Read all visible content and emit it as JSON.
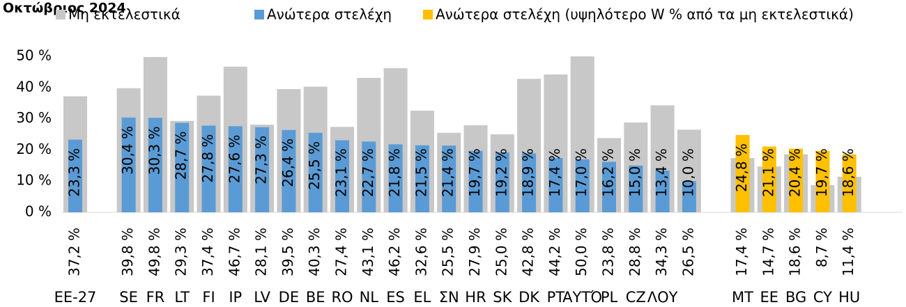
{
  "chart_data": {
    "type": "bar",
    "title": "Οκτώβριος 2024",
    "categories": [
      "EE-27",
      "SE",
      "FR",
      "LT",
      "FI",
      "IP",
      "LV",
      "DE",
      "BE",
      "RO",
      "NL",
      "ES",
      "EL",
      "ΣΝ",
      "HR",
      "SK",
      "DK",
      "PT",
      "ΑΥΤΌ",
      "PL",
      "CZ",
      "ΛΟΥ",
      null,
      "MT",
      "EE",
      "BG",
      "CY",
      "HU"
    ],
    "series": [
      {
        "name": "Μη εκτελεστικά",
        "color": "#c8c8c8",
        "values": [
          37.2,
          39.8,
          49.8,
          29.3,
          37.4,
          46.7,
          28.1,
          39.5,
          40.3,
          27.4,
          43.1,
          46.2,
          32.6,
          25.5,
          27.9,
          25.0,
          42.8,
          44.2,
          50.0,
          23.8,
          28.8,
          34.3,
          26.5,
          17.4,
          14.7,
          18.6,
          8.7,
          11.4
        ],
        "value_labels": [
          "37,2 %",
          "39,8 %",
          "49,8 %",
          "29,3 %",
          "37,4 %",
          "46,7 %",
          "28,1 %",
          "39,5 %",
          "40,3 %",
          "27,4 %",
          "43,1 %",
          "46,2 %",
          "32,6 %",
          "25,5 %",
          "27,9 %",
          "25,0 %",
          "42,8 %",
          "44,2 %",
          "50,0 %",
          "23,8 %",
          "28,8 %",
          "34,3 %",
          "26,5 %",
          "17,4 %",
          "14,7 %",
          "18,6 %",
          "8,7 %",
          "11,4 %"
        ]
      },
      {
        "name": "Ανώτερα στελέχη",
        "color": "#5b9bd5",
        "values": [
          23.3,
          30.4,
          30.3,
          28.7,
          27.8,
          27.6,
          27.3,
          26.4,
          25.5,
          23.1,
          22.7,
          21.8,
          21.5,
          21.4,
          19.7,
          19.2,
          18.9,
          17.4,
          17.0,
          16.2,
          15.0,
          13.4,
          10.0,
          null,
          null,
          null,
          null,
          null
        ],
        "value_labels": [
          "23,3 %",
          "30,4 %",
          "30,3 %",
          "28,7 %",
          "27,8 %",
          "27,6 %",
          "27,3 %",
          "26,4 %",
          "25,5 %",
          "23,1 %",
          "22,7 %",
          "21,8 %",
          "21,5 %",
          "21,4 %",
          "19,7 %",
          "19,2 %",
          "18,9 %",
          "17,4 %",
          "17,0 %",
          "16,2 %",
          "15,0 %",
          "13,4 %",
          "10,0 %",
          null,
          null,
          null,
          null,
          null
        ]
      },
      {
        "name": "Ανώτερα στελέχη (υψηλότερο W % από τα μη εκτελεστικά)",
        "color": "#ffc000",
        "values": [
          null,
          null,
          null,
          null,
          null,
          null,
          null,
          null,
          null,
          null,
          null,
          null,
          null,
          null,
          null,
          null,
          null,
          null,
          null,
          null,
          null,
          null,
          null,
          24.8,
          21.1,
          20.4,
          19.7,
          18.6
        ],
        "value_labels": [
          null,
          null,
          null,
          null,
          null,
          null,
          null,
          null,
          null,
          null,
          null,
          null,
          null,
          null,
          null,
          null,
          null,
          null,
          null,
          null,
          null,
          null,
          null,
          "24,8 %",
          "21,1 %",
          "20,4 %",
          "19,7 %",
          "18,6 %"
        ]
      }
    ],
    "ylim": [
      0,
      50
    ],
    "yticks": [
      {
        "value": 0,
        "label": "0 %"
      },
      {
        "value": 10,
        "label": "10 %"
      },
      {
        "value": 20,
        "label": "20 %"
      },
      {
        "value": 30,
        "label": "30 %"
      },
      {
        "value": 40,
        "label": "40 %"
      },
      {
        "value": 50,
        "label": "50 %"
      }
    ]
  }
}
